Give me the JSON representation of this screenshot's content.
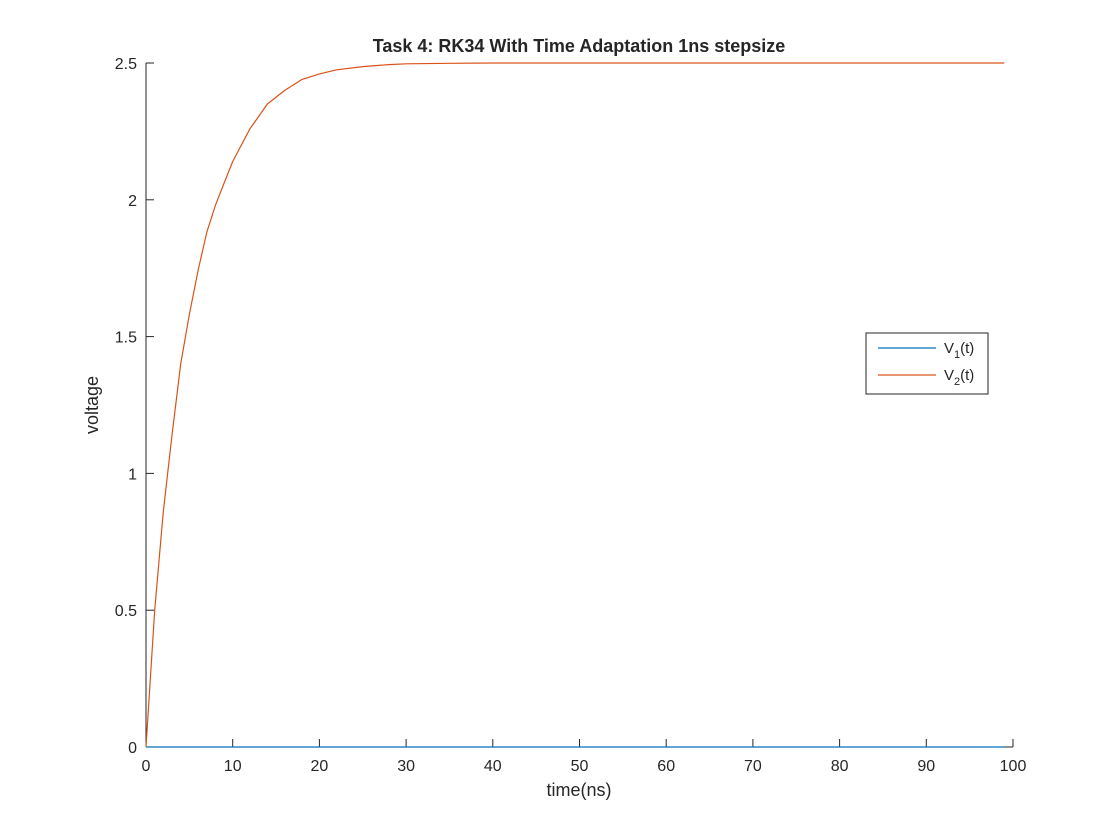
{
  "chart_data": {
    "type": "line",
    "title": "Task 4: RK34 With Time Adaptation 1ns stepsize",
    "xlabel": "time(ns)",
    "ylabel": "voltage",
    "xlim": [
      0,
      100
    ],
    "ylim": [
      0,
      2.5
    ],
    "xticks": [
      0,
      10,
      20,
      30,
      40,
      50,
      60,
      70,
      80,
      90,
      100
    ],
    "yticks": [
      0,
      0.5,
      1,
      1.5,
      2,
      2.5
    ],
    "xtick_labels": [
      "0",
      "10",
      "20",
      "30",
      "40",
      "50",
      "60",
      "70",
      "80",
      "90",
      "100"
    ],
    "ytick_labels": [
      "0",
      "0.5",
      "1",
      "1.5",
      "2",
      "2.5"
    ],
    "grid": false,
    "legend_position": "right",
    "series": [
      {
        "name": "V1(t)",
        "legend_main": "V",
        "legend_sub": "1",
        "legend_suffix": "(t)",
        "color": "#0072BD",
        "x": [
          0,
          1,
          2,
          3,
          5,
          10,
          20,
          30,
          40,
          50,
          60,
          70,
          80,
          90,
          99
        ],
        "y": [
          0,
          0,
          0,
          0,
          0,
          0,
          0,
          0,
          0,
          0,
          0,
          0,
          0,
          0,
          0
        ]
      },
      {
        "name": "V2(t)",
        "legend_main": "V",
        "legend_sub": "2",
        "legend_suffix": "(t)",
        "color": "#D95319",
        "x": [
          0,
          1,
          2,
          3,
          4,
          5,
          6,
          7,
          8,
          9,
          10,
          12,
          14,
          16,
          18,
          20,
          22,
          25,
          28,
          30,
          35,
          40,
          50,
          60,
          70,
          80,
          90,
          99
        ],
        "y": [
          0,
          0.5,
          0.86,
          1.14,
          1.4,
          1.58,
          1.74,
          1.88,
          1.98,
          2.06,
          2.14,
          2.26,
          2.35,
          2.4,
          2.44,
          2.46,
          2.475,
          2.487,
          2.494,
          2.497,
          2.499,
          2.5,
          2.5,
          2.5,
          2.5,
          2.5,
          2.5,
          2.5
        ]
      }
    ]
  }
}
